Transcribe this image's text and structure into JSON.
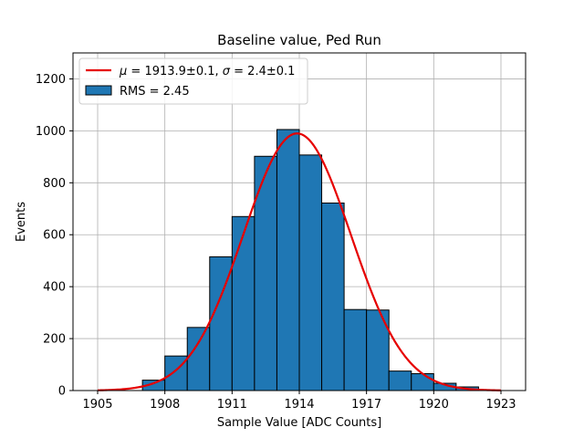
{
  "chart_data": {
    "type": "bar",
    "title": "Baseline value, Ped Run",
    "xlabel": "Sample Value [ADC Counts]",
    "ylabel": "Events",
    "xlim": [
      1903.9,
      1924.1
    ],
    "ylim": [
      0,
      1300
    ],
    "xticks": [
      1905,
      1908,
      1911,
      1914,
      1917,
      1920,
      1923
    ],
    "yticks": [
      0,
      200,
      400,
      600,
      800,
      1000,
      1200
    ],
    "grid": true,
    "legend_position": "upper-left",
    "bin_width": 1,
    "bins": [
      {
        "x0": 1907,
        "count": 40
      },
      {
        "x0": 1908,
        "count": 133
      },
      {
        "x0": 1909,
        "count": 243
      },
      {
        "x0": 1910,
        "count": 515
      },
      {
        "x0": 1911,
        "count": 670
      },
      {
        "x0": 1912,
        "count": 902
      },
      {
        "x0": 1913,
        "count": 1005
      },
      {
        "x0": 1914,
        "count": 907
      },
      {
        "x0": 1915,
        "count": 722
      },
      {
        "x0": 1916,
        "count": 312
      },
      {
        "x0": 1917,
        "count": 310
      },
      {
        "x0": 1918,
        "count": 75
      },
      {
        "x0": 1919,
        "count": 65
      },
      {
        "x0": 1920,
        "count": 28
      },
      {
        "x0": 1921,
        "count": 14
      }
    ],
    "histogram_color": "#1f77b4",
    "fit": {
      "type": "gaussian",
      "mu": 1913.9,
      "sigma": 2.4,
      "amplitude": 990,
      "x_range": [
        1905,
        1923
      ],
      "color": "#e60000"
    },
    "legend": {
      "fit_label_prefix": "μ",
      "fit_label_eq1": " = 1913.9±0.1, ",
      "fit_label_sigma": "σ",
      "fit_label_eq2": " = 2.4±0.1",
      "hist_label": "RMS = 2.45"
    }
  }
}
